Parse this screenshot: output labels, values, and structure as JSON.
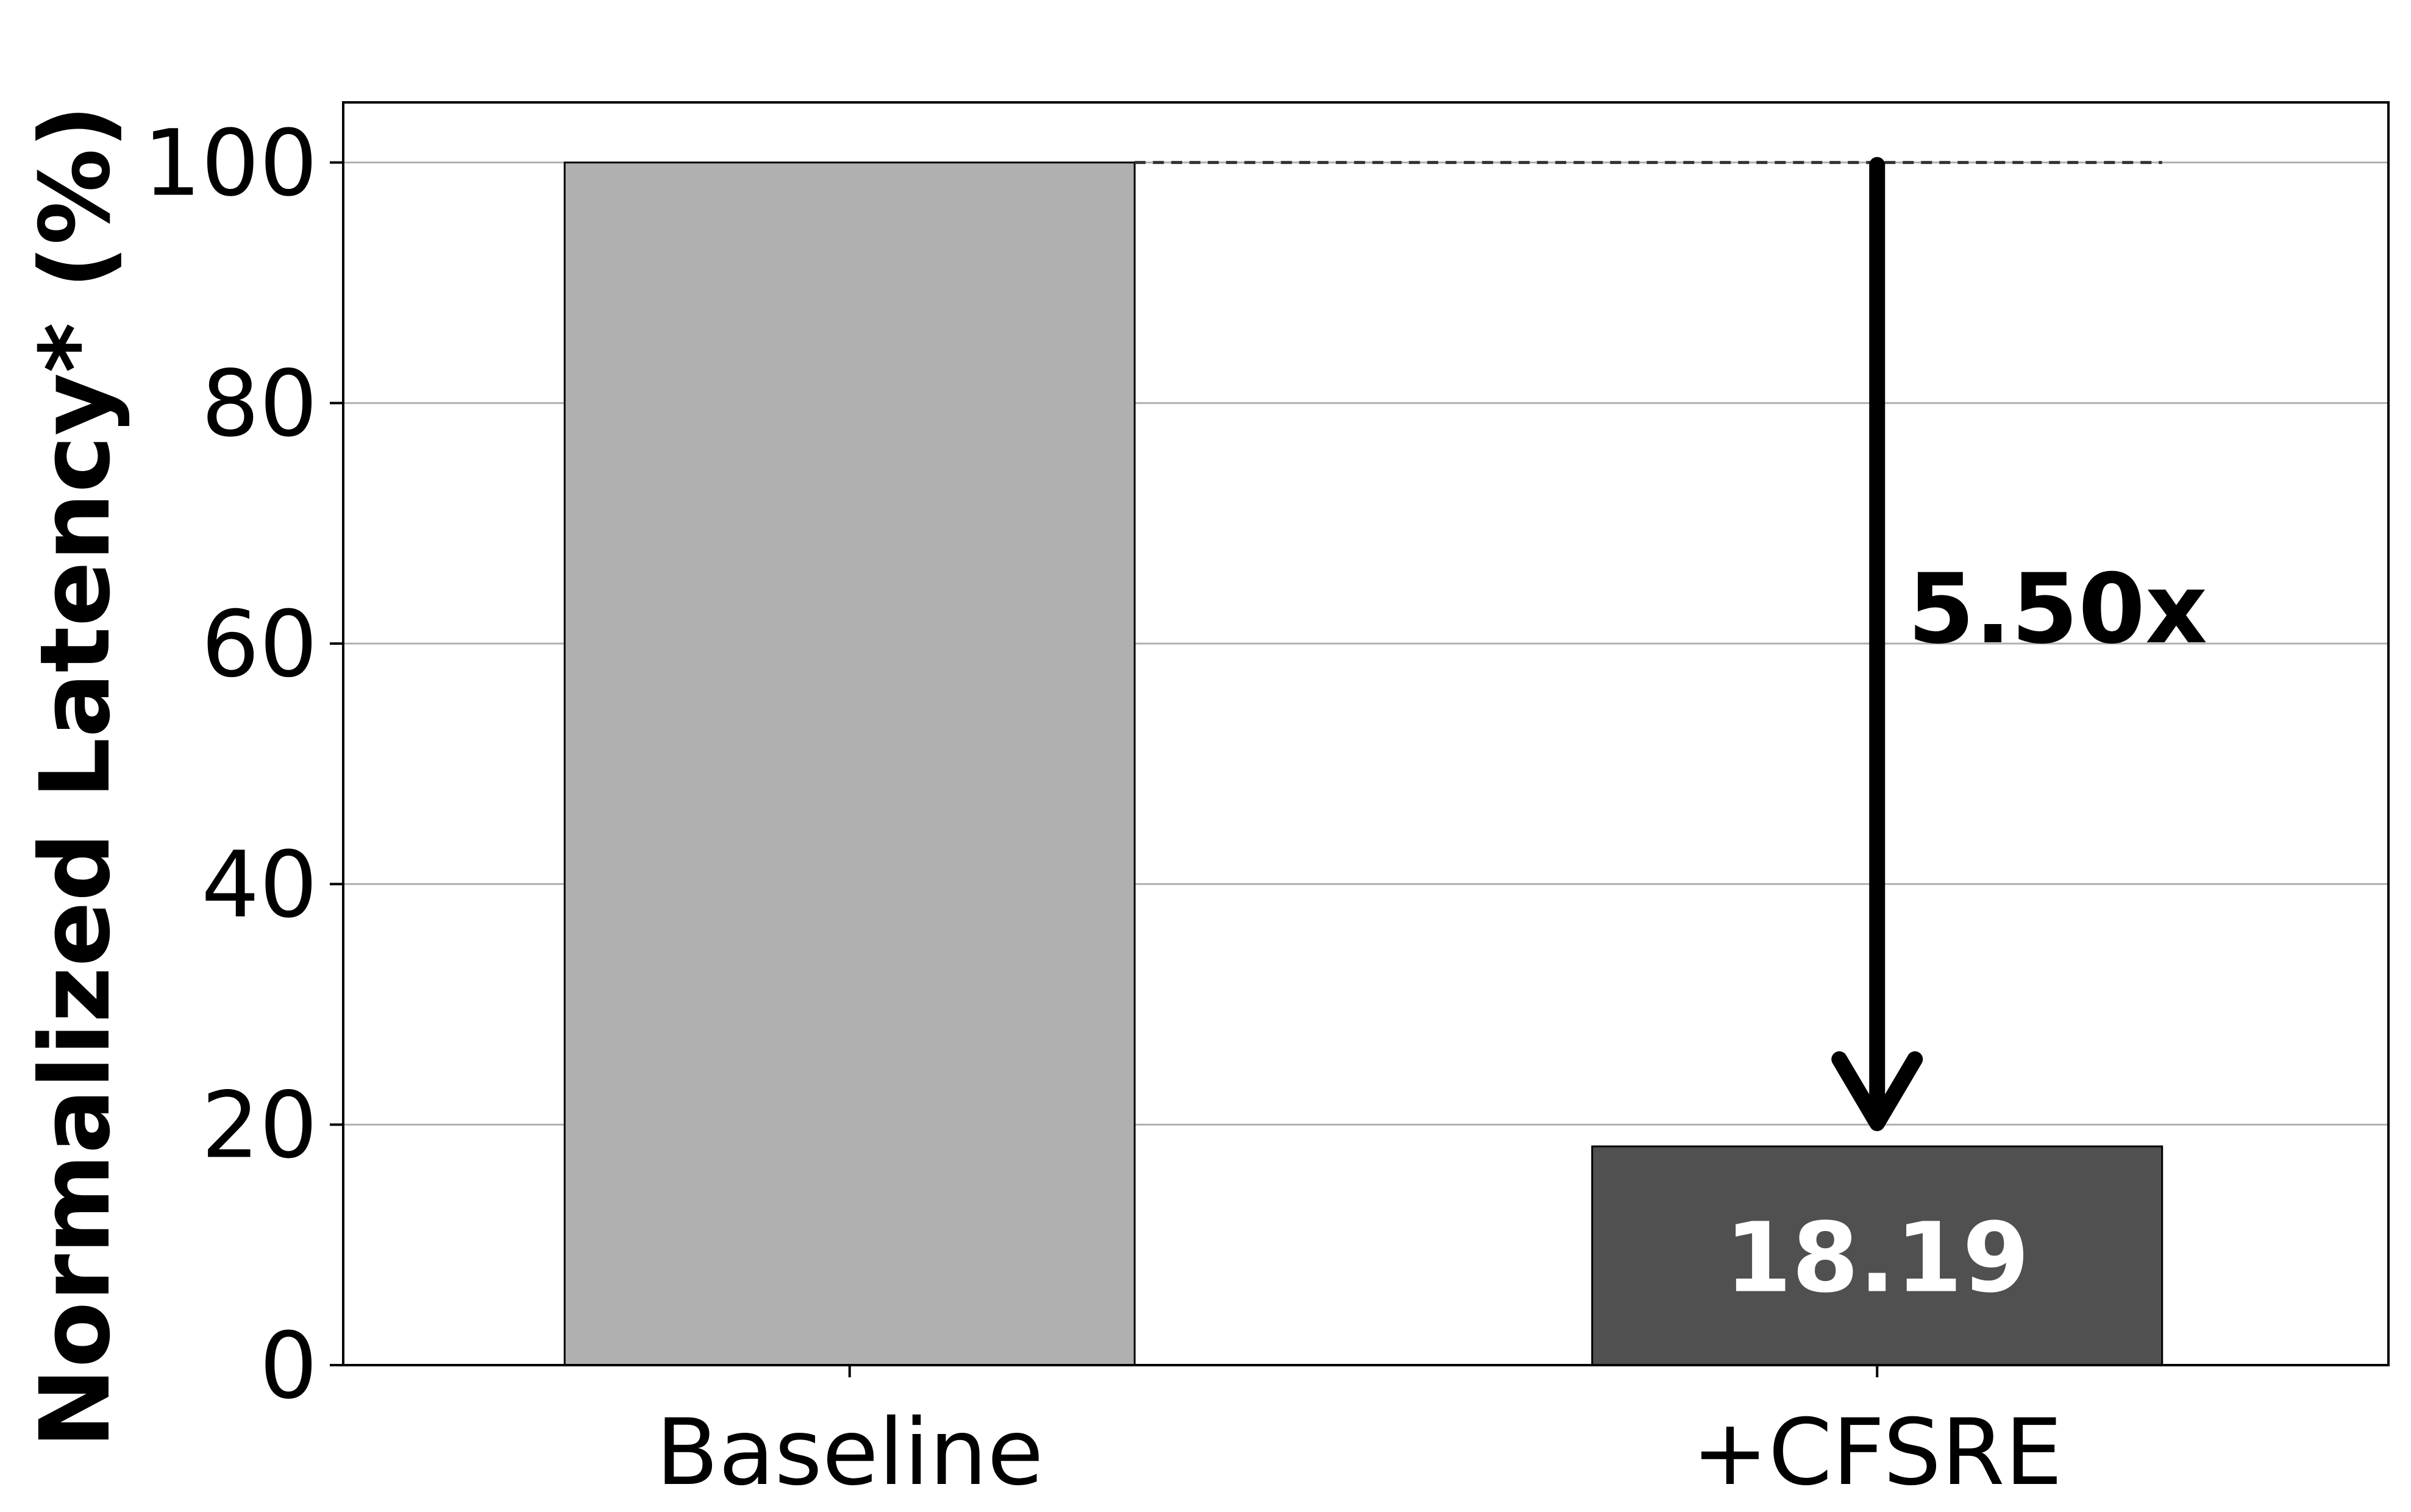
{
  "chart_data": {
    "type": "bar",
    "title": "",
    "xlabel": "",
    "ylabel": "Normalized Latency* (%)",
    "categories": [
      "Baseline",
      "+CFSRE"
    ],
    "values": [
      100,
      18.19
    ],
    "value_labels": [
      "",
      "18.19"
    ],
    "colors": [
      "#b0b0b0",
      "#505050"
    ],
    "ylim": [
      0,
      105
    ],
    "yticks": [
      0,
      20,
      40,
      60,
      80,
      100
    ],
    "ytick_labels": [
      "0",
      "20",
      "40",
      "60",
      "80",
      "100"
    ],
    "grid": "horizontal",
    "annotation": {
      "text": "5.50x",
      "from_value": 100,
      "to_value": 18.19
    }
  }
}
